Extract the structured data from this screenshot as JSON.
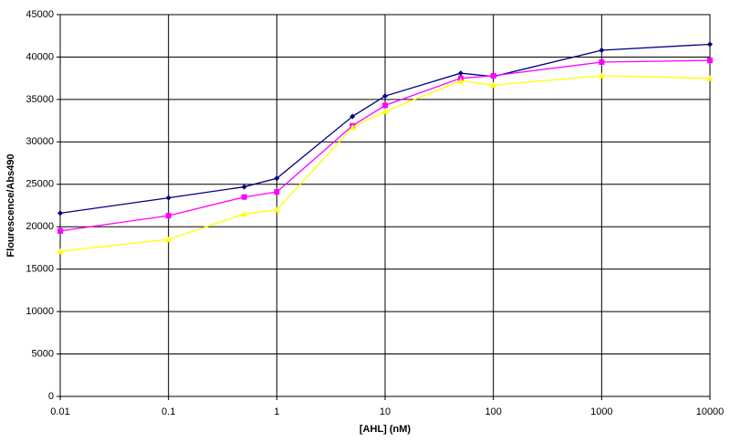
{
  "chart_data": {
    "type": "line",
    "x_label": "[AHL] (nM)",
    "y_label": "Flourescence/Abs490",
    "x": [
      0.01,
      0.1,
      0.5,
      1,
      5,
      10,
      50,
      100,
      1000,
      10000
    ],
    "series": [
      {
        "color": "#000080",
        "marker": "diamond",
        "values": [
          21600,
          23400,
          24700,
          25700,
          33000,
          35400,
          38100,
          37700,
          40800,
          41500
        ]
      },
      {
        "color": "#ff00ff",
        "marker": "square",
        "values": [
          19500,
          21300,
          23500,
          24100,
          31900,
          34300,
          37500,
          37800,
          39400,
          39600
        ]
      },
      {
        "color": "#ffff00",
        "marker": "triangle",
        "values": [
          17100,
          18500,
          21500,
          22000,
          31700,
          33600,
          37200,
          36700,
          37800,
          37500
        ]
      }
    ],
    "xlim": [
      0.01,
      10000
    ],
    "xticks": [
      0.01,
      0.1,
      1,
      10,
      100,
      1000,
      10000
    ],
    "x_log": true,
    "ylim": [
      0,
      45000
    ],
    "yticks": [
      0,
      5000,
      10000,
      15000,
      20000,
      25000,
      30000,
      35000,
      40000,
      45000
    ],
    "grid": true
  }
}
